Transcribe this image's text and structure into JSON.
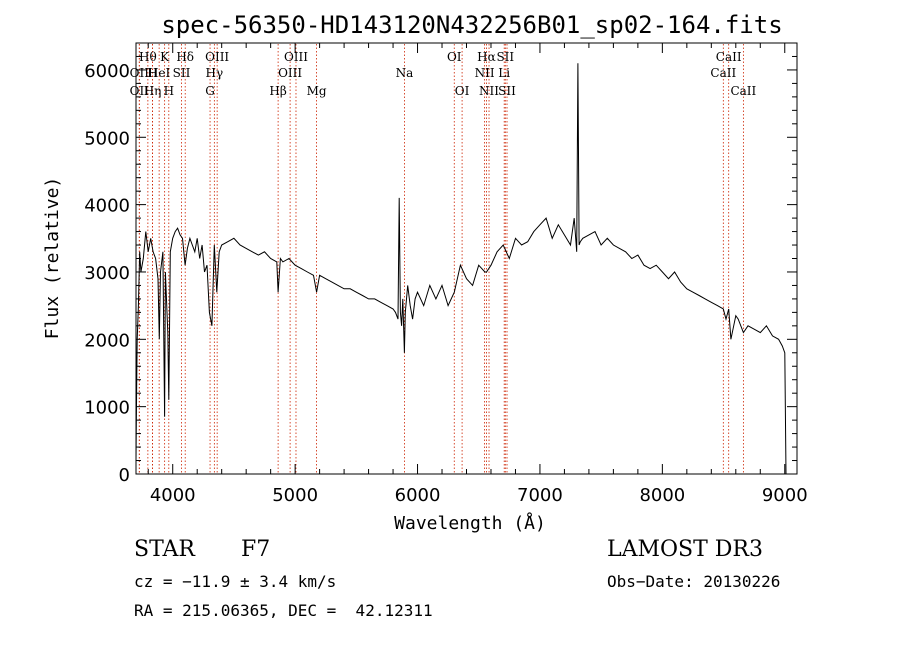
{
  "chart_data": {
    "type": "line",
    "title": "spec-56350-HD143120N432256B01_sp02-164.fits",
    "xlabel": "Wavelength (Å)",
    "ylabel": "Flux (relative)",
    "xlim": [
      3700,
      9100
    ],
    "ylim": [
      0,
      6400
    ],
    "xticks": [
      4000,
      5000,
      6000,
      7000,
      8000,
      9000
    ],
    "yticks": [
      0,
      1000,
      2000,
      3000,
      4000,
      5000,
      6000
    ],
    "grid": false,
    "series": [
      {
        "x": [
          3700,
          3705,
          3710,
          3720,
          3730,
          3740,
          3760,
          3780,
          3800,
          3820,
          3840,
          3860,
          3880,
          3890,
          3900,
          3920,
          3934,
          3940,
          3960,
          3968,
          3980,
          4000,
          4020,
          4040,
          4060,
          4080,
          4101,
          4120,
          4140,
          4160,
          4180,
          4200,
          4220,
          4240,
          4260,
          4280,
          4300,
          4320,
          4340,
          4360,
          4380,
          4400,
          4450,
          4500,
          4550,
          4600,
          4650,
          4700,
          4750,
          4800,
          4850,
          4861,
          4880,
          4900,
          4950,
          5000,
          5050,
          5100,
          5150,
          5175,
          5200,
          5250,
          5300,
          5350,
          5400,
          5450,
          5500,
          5550,
          5600,
          5650,
          5700,
          5750,
          5800,
          5820,
          5840,
          5850,
          5860,
          5870,
          5880,
          5893,
          5900,
          5920,
          5940,
          5960,
          5980,
          6000,
          6050,
          6100,
          6150,
          6200,
          6250,
          6300,
          6350,
          6400,
          6450,
          6500,
          6550,
          6563,
          6600,
          6650,
          6700,
          6750,
          6800,
          6850,
          6900,
          6950,
          7000,
          7050,
          7100,
          7150,
          7200,
          7250,
          7280,
          7300,
          7310,
          7320,
          7330,
          7350,
          7400,
          7450,
          7500,
          7550,
          7600,
          7650,
          7700,
          7750,
          7800,
          7850,
          7900,
          7950,
          8000,
          8050,
          8100,
          8150,
          8200,
          8250,
          8300,
          8350,
          8400,
          8450,
          8498,
          8520,
          8542,
          8560,
          8600,
          8620,
          8662,
          8700,
          8750,
          8800,
          8850,
          8900,
          8950,
          8980,
          9000,
          9010
        ],
        "y": [
          200,
          1200,
          2000,
          2500,
          3300,
          3000,
          3200,
          3600,
          3300,
          3500,
          3300,
          3200,
          2900,
          2000,
          3000,
          3300,
          850,
          3000,
          2100,
          1100,
          3300,
          3500,
          3600,
          3650,
          3550,
          3500,
          3100,
          3350,
          3500,
          3400,
          3300,
          3500,
          3200,
          3400,
          3000,
          3100,
          2400,
          2200,
          3400,
          2700,
          3300,
          3400,
          3450,
          3500,
          3400,
          3350,
          3300,
          3250,
          3300,
          3200,
          3150,
          2700,
          3200,
          3150,
          3200,
          3100,
          3050,
          3000,
          2950,
          2700,
          2950,
          2900,
          2850,
          2800,
          2750,
          2750,
          2700,
          2650,
          2600,
          2600,
          2550,
          2500,
          2450,
          2400,
          2300,
          4100,
          2400,
          2200,
          2600,
          1800,
          2400,
          2800,
          2500,
          2300,
          2600,
          2700,
          2500,
          2800,
          2600,
          2800,
          2500,
          2700,
          3100,
          2900,
          2800,
          3100,
          3000,
          3000,
          3100,
          3300,
          3400,
          3200,
          3500,
          3400,
          3450,
          3600,
          3700,
          3800,
          3500,
          3700,
          3550,
          3400,
          3800,
          3300,
          6100,
          3400,
          3450,
          3500,
          3550,
          3600,
          3400,
          3500,
          3400,
          3350,
          3300,
          3200,
          3250,
          3100,
          3050,
          3100,
          3000,
          2900,
          3000,
          2850,
          2750,
          2700,
          2650,
          2600,
          2550,
          2500,
          2450,
          2300,
          2450,
          2000,
          2350,
          2300,
          2100,
          2200,
          2150,
          2100,
          2200,
          2050,
          2000,
          1900,
          1800,
          0
        ]
      }
    ],
    "lines": {
      "r1": [
        {
          "x": 3797,
          "label": "Hθ"
        },
        {
          "x": 3934,
          "label": "K"
        },
        {
          "x": 4102,
          "label": "Hδ"
        },
        {
          "x": 4363,
          "label": "OIII"
        },
        {
          "x": 5007,
          "label": "OIII"
        },
        {
          "x": 6300,
          "label": "OI"
        },
        {
          "x": 6563,
          "label": "Hα"
        },
        {
          "x": 6717,
          "label": "SII"
        },
        {
          "x": 8542,
          "label": "CaII"
        }
      ],
      "r2": [
        {
          "x": 3727,
          "label": "OII"
        },
        {
          "x": 3835,
          "label": "H"
        },
        {
          "x": 3889,
          "label": "HeI"
        },
        {
          "x": 4072,
          "label": "SII"
        },
        {
          "x": 4340,
          "label": "Hγ"
        },
        {
          "x": 4959,
          "label": "OIII"
        },
        {
          "x": 5893,
          "label": "Na"
        },
        {
          "x": 6548,
          "label": "NII"
        },
        {
          "x": 6708,
          "label": "Li"
        },
        {
          "x": 8498,
          "label": "CaII"
        }
      ],
      "r3": [
        {
          "x": 3727,
          "label": "OII"
        },
        {
          "x": 3835,
          "label": "Hη"
        },
        {
          "x": 3968,
          "label": "H"
        },
        {
          "x": 4305,
          "label": "G"
        },
        {
          "x": 4861,
          "label": "Hβ"
        },
        {
          "x": 5175,
          "label": "Mg"
        },
        {
          "x": 6364,
          "label": "OI"
        },
        {
          "x": 6584,
          "label": "NII"
        },
        {
          "x": 6731,
          "label": "SII"
        },
        {
          "x": 8662,
          "label": "CaII"
        }
      ]
    }
  },
  "info": {
    "class": "STAR",
    "subclass": "F7",
    "survey": "LAMOST DR3",
    "cz": "cz = −11.9 ± 3.4 km/s",
    "obsdate": "Obs−Date: 20130226",
    "radec": "RA = 215.06365, DEC =  42.12311"
  },
  "colors": {
    "lines": "#cc2200",
    "spectrum": "#000000"
  }
}
